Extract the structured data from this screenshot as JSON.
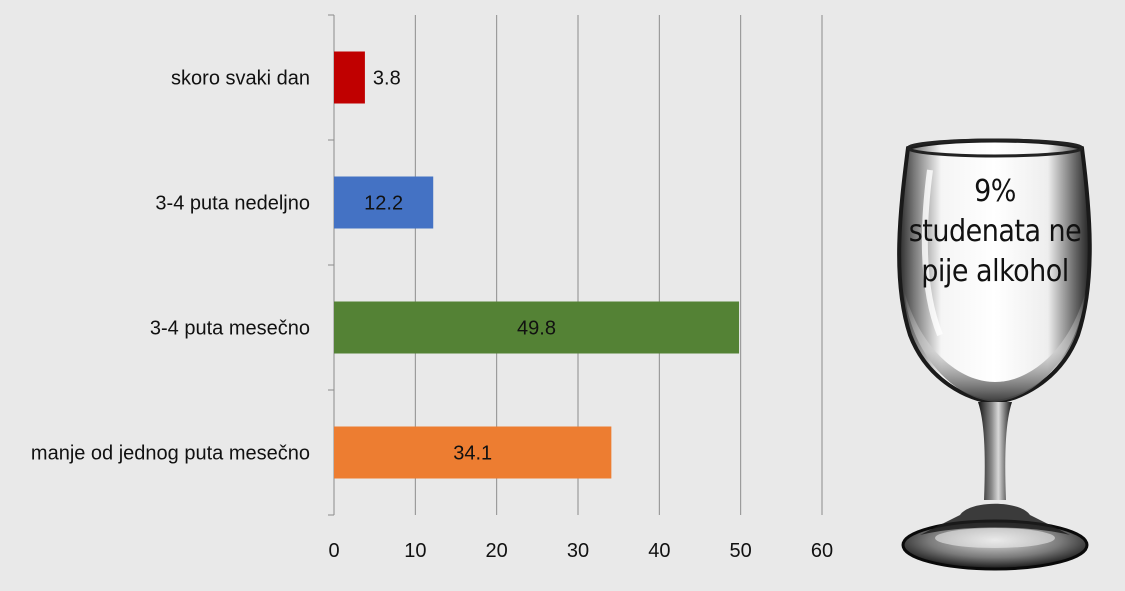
{
  "chart_data": {
    "type": "bar",
    "orientation": "horizontal",
    "categories": [
      "skoro svaki dan",
      "3-4 puta nedeljno",
      "3-4 puta mesečno",
      "manje od jednog puta mesečno"
    ],
    "values": [
      3.8,
      12.2,
      49.8,
      34.1
    ],
    "value_labels": [
      "3.8",
      "12.2",
      "49.8",
      "34.1"
    ],
    "bar_colors": [
      "#c00000",
      "#4472c4",
      "#548235",
      "#ed7d31"
    ],
    "x_ticks": [
      "0",
      "10",
      "20",
      "30",
      "40",
      "50",
      "60"
    ],
    "xlim": [
      0,
      60
    ],
    "grid": "vertical",
    "title": "",
    "xlabel": "",
    "ylabel": ""
  },
  "callout": {
    "line1": "9%",
    "line2": "studenata ne",
    "line3": "pije alkohol"
  }
}
